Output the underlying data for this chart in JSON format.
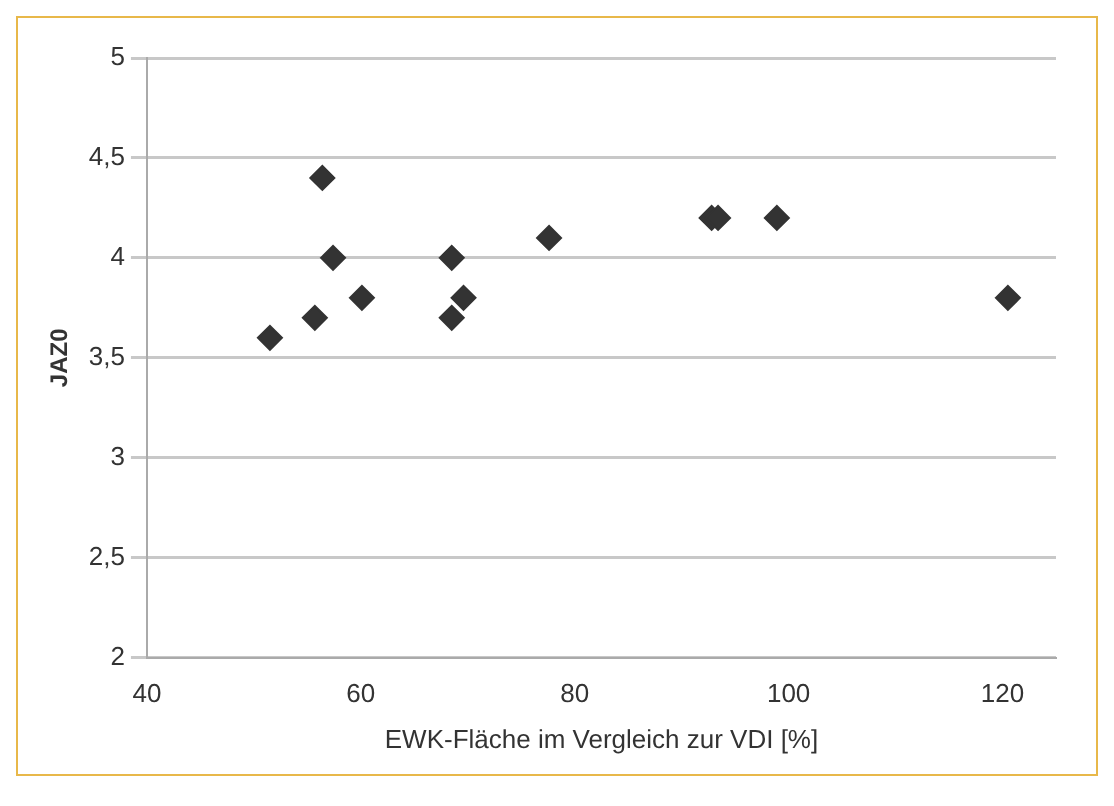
{
  "chart_data": {
    "type": "scatter",
    "xlabel": "EWK-Fläche im Vergleich zur VDI [%]",
    "ylabel": "JAZ0",
    "x": [
      51.5,
      55.7,
      56.4,
      57.4,
      60.1,
      68.5,
      68.5,
      69.6,
      77.6,
      92.8,
      93.4,
      98.9,
      120.5
    ],
    "values": [
      3.6,
      3.7,
      4.4,
      4.0,
      3.8,
      4.0,
      3.7,
      3.8,
      4.1,
      4.2,
      4.2,
      4.2,
      3.8
    ],
    "color": "#333333",
    "marker": "diamond",
    "xlim": [
      40,
      125
    ],
    "xticks": [
      40,
      60,
      80,
      100,
      120
    ],
    "ylim": [
      2,
      5
    ],
    "yticks": [
      {
        "value": 2,
        "label": "2"
      },
      {
        "value": 2.5,
        "label": "2,5"
      },
      {
        "value": 3,
        "label": "3"
      },
      {
        "value": 3.5,
        "label": "3,5"
      },
      {
        "value": 4,
        "label": "4"
      },
      {
        "value": 4.5,
        "label": "4,5"
      },
      {
        "value": 5,
        "label": "5"
      }
    ],
    "grid": "y",
    "legend": false
  }
}
